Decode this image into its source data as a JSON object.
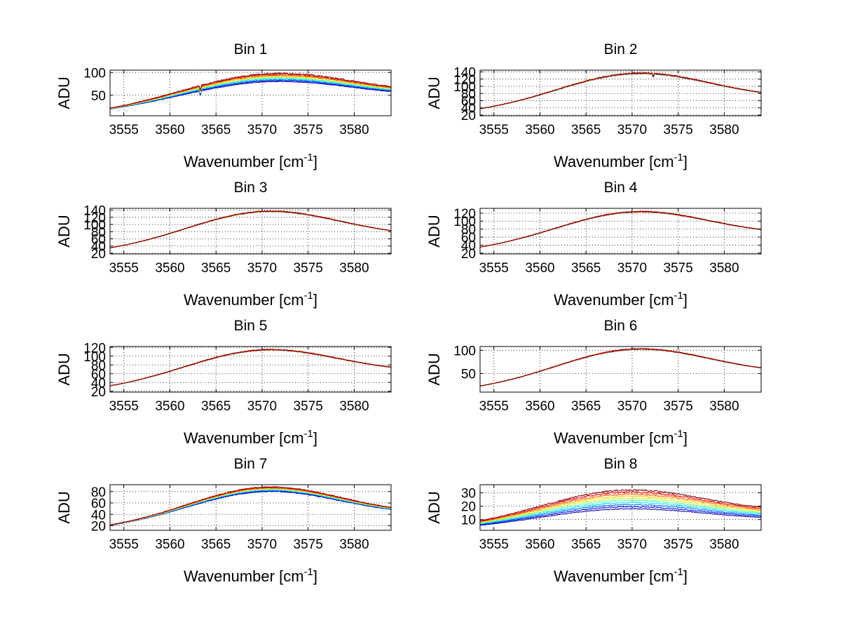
{
  "figure": {
    "background": "#ffffff"
  },
  "series_colors": [
    "#00008f",
    "#0000ff",
    "#006fff",
    "#00dfff",
    "#50ffaf",
    "#bfff40",
    "#ffcf00",
    "#ff6000",
    "#ef0000",
    "#800000"
  ],
  "chart_data": [
    {
      "type": "line",
      "title": "Bin 1",
      "xlabel": "Wavenumber [cm",
      "xlabel_sup": "-1",
      "xlabel_end": "]",
      "ylabel": "ADU",
      "xlim": [
        3553.5,
        3584
      ],
      "ylim": [
        5,
        105
      ],
      "xticks": [
        3555,
        3560,
        3565,
        3570,
        3575,
        3580
      ],
      "yticks": [
        50,
        100
      ],
      "curve": {
        "center": 3572,
        "width": 17,
        "base_lo": [
          9,
          8
        ],
        "base_hi": [
          40,
          45
        ],
        "peak_lo": 80,
        "peak_hi": 98,
        "noise_lo": 1.2,
        "noise_hi": 2.5,
        "dip_at": 3563.3,
        "dip_depth": 12
      }
    },
    {
      "type": "line",
      "title": "Bin 2",
      "xlabel": "Wavenumber [cm",
      "xlabel_sup": "-1",
      "xlabel_end": "]",
      "ylabel": "ADU",
      "xlim": [
        3553.5,
        3584
      ],
      "ylim": [
        18,
        145
      ],
      "xticks": [
        3555,
        3560,
        3565,
        3570,
        3575,
        3580
      ],
      "yticks": [
        20,
        40,
        60,
        80,
        100,
        120,
        140
      ],
      "curve": {
        "center": 3571,
        "width": 15,
        "base_lo": [
          25,
          25
        ],
        "base_hi": [
          60,
          60
        ],
        "peak_lo": 135,
        "peak_hi": 137,
        "noise_lo": 1.5,
        "noise_hi": 2.5,
        "dip_at": 3572.3,
        "dip_depth": 10
      }
    },
    {
      "type": "line",
      "title": "Bin 3",
      "xlabel": "Wavenumber [cm",
      "xlabel_sup": "-1",
      "xlabel_end": "]",
      "ylabel": "ADU",
      "xlim": [
        3553.5,
        3584
      ],
      "ylim": [
        18,
        145
      ],
      "xticks": [
        3555,
        3560,
        3565,
        3570,
        3575,
        3580
      ],
      "yticks": [
        20,
        40,
        60,
        80,
        100,
        120,
        140
      ],
      "curve": {
        "center": 3571,
        "width": 15,
        "base_lo": [
          22,
          22
        ],
        "base_hi": [
          60,
          60
        ],
        "peak_lo": 136,
        "peak_hi": 137,
        "noise_lo": 1.5,
        "noise_hi": 2.2,
        "dip_at": 0,
        "dip_depth": 0
      }
    },
    {
      "type": "line",
      "title": "Bin 4",
      "xlabel": "Wavenumber [cm",
      "xlabel_sup": "-1",
      "xlabel_end": "]",
      "ylabel": "ADU",
      "xlim": [
        3553.5,
        3584
      ],
      "ylim": [
        18,
        132
      ],
      "xticks": [
        3555,
        3560,
        3565,
        3570,
        3575,
        3580
      ],
      "yticks": [
        20,
        40,
        60,
        80,
        100,
        120
      ],
      "curve": {
        "center": 3571,
        "width": 15,
        "base_lo": [
          24,
          24
        ],
        "base_hi": [
          60,
          60
        ],
        "peak_lo": 123,
        "peak_hi": 124,
        "noise_lo": 1.4,
        "noise_hi": 2.0,
        "dip_at": 0,
        "dip_depth": 0
      }
    },
    {
      "type": "line",
      "title": "Bin 5",
      "xlabel": "Wavenumber [cm",
      "xlabel_sup": "-1",
      "xlabel_end": "]",
      "ylabel": "ADU",
      "xlim": [
        3553.5,
        3584
      ],
      "ylim": [
        18,
        122
      ],
      "xticks": [
        3555,
        3560,
        3565,
        3570,
        3575,
        3580
      ],
      "yticks": [
        20,
        40,
        60,
        80,
        100,
        120
      ],
      "curve": {
        "center": 3571,
        "width": 15,
        "base_lo": [
          22,
          22
        ],
        "base_hi": [
          58,
          58
        ],
        "peak_lo": 114,
        "peak_hi": 115,
        "noise_lo": 1.3,
        "noise_hi": 1.8,
        "dip_at": 0,
        "dip_depth": 0
      }
    },
    {
      "type": "line",
      "title": "Bin 6",
      "xlabel": "Wavenumber [cm",
      "xlabel_sup": "-1",
      "xlabel_end": "]",
      "ylabel": "ADU",
      "xlim": [
        3553.5,
        3584
      ],
      "ylim": [
        10,
        108
      ],
      "xticks": [
        3555,
        3560,
        3565,
        3570,
        3575,
        3580
      ],
      "yticks": [
        50,
        100
      ],
      "curve": {
        "center": 3571,
        "width": 15,
        "base_lo": [
          13,
          13
        ],
        "base_hi": [
          45,
          45
        ],
        "peak_lo": 102,
        "peak_hi": 103,
        "noise_lo": 1.2,
        "noise_hi": 1.6,
        "dip_at": 0,
        "dip_depth": 0
      }
    },
    {
      "type": "line",
      "title": "Bin 7",
      "xlabel": "Wavenumber [cm",
      "xlabel_sup": "-1",
      "xlabel_end": "]",
      "ylabel": "ADU",
      "xlim": [
        3553.5,
        3584
      ],
      "ylim": [
        12,
        92
      ],
      "xticks": [
        3555,
        3560,
        3565,
        3570,
        3575,
        3580
      ],
      "yticks": [
        20,
        40,
        60,
        80
      ],
      "curve": {
        "center": 3571,
        "width": 15,
        "base_lo": [
          13,
          13
        ],
        "base_hi": [
          35,
          37
        ],
        "peak_lo": 80,
        "peak_hi": 88,
        "noise_lo": 1.0,
        "noise_hi": 1.4,
        "dip_at": 0,
        "dip_depth": 0
      }
    },
    {
      "type": "line",
      "title": "Bin 8",
      "xlabel": "Wavenumber [cm",
      "xlabel_sup": "-1",
      "xlabel_end": "]",
      "ylabel": "ADU",
      "xlim": [
        3553.5,
        3584
      ],
      "ylim": [
        2,
        36
      ],
      "xticks": [
        3555,
        3560,
        3565,
        3570,
        3575,
        3580
      ],
      "yticks": [
        10,
        20,
        30
      ],
      "curve": {
        "center": 3570,
        "width": 16,
        "base_lo": [
          3,
          4
        ],
        "base_hi": [
          9,
          14
        ],
        "peak_lo": 18,
        "peak_hi": 32,
        "noise_lo": 0.5,
        "noise_hi": 0.9,
        "dip_at": 0,
        "dip_depth": 0
      }
    }
  ]
}
